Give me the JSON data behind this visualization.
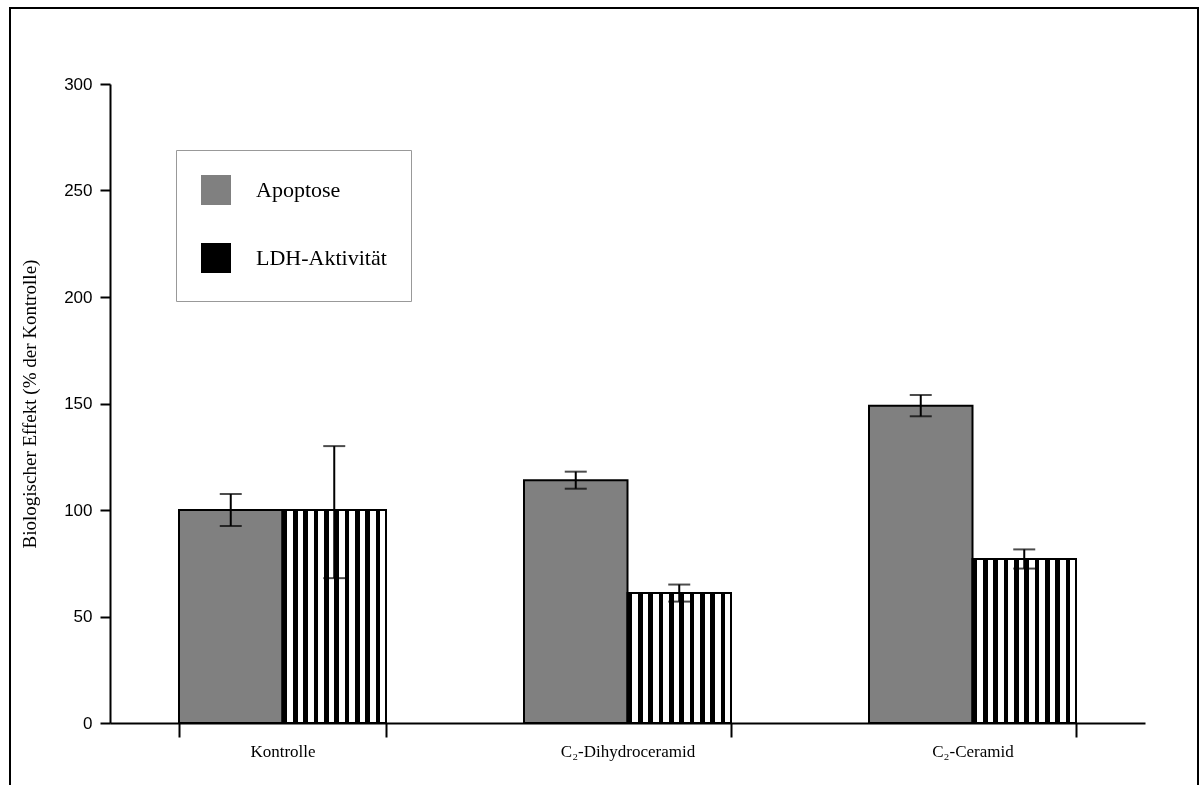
{
  "chart_data": {
    "type": "bar",
    "ylabel": "Biologischer Effekt (% der Kontrolle)",
    "categories": [
      "Kontrolle",
      "C₂-Dihydroceramid",
      "C₂-Ceramid"
    ],
    "series": [
      {
        "name": "Apoptose",
        "color": "#808080",
        "values": [
          100,
          114,
          149
        ],
        "errors": [
          7.5,
          4,
          5
        ]
      },
      {
        "name": "LDH-Aktivität",
        "color": "#000000",
        "values": [
          100,
          61,
          77
        ],
        "errors": [
          [
            68,
            130
          ],
          4,
          4.5
        ]
      }
    ],
    "ylim": [
      0,
      300
    ],
    "yticks": [
      0,
      50,
      100,
      150,
      200,
      250,
      300
    ],
    "legend": "top left"
  }
}
